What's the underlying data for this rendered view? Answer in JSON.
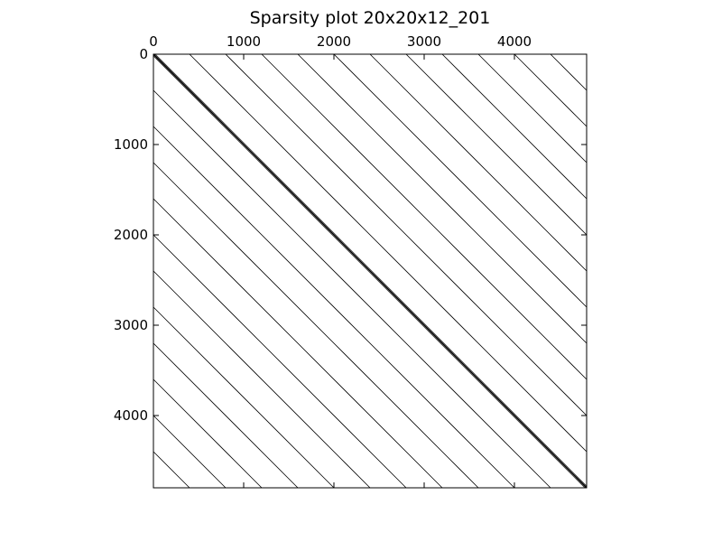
{
  "chart_data": {
    "type": "scatter",
    "title": "Sparsity plot 20x20x12_201",
    "xlabel": "",
    "ylabel": "",
    "xlim": [
      0,
      4800
    ],
    "ylim": [
      4800,
      0
    ],
    "matrix_size": 4800,
    "x_ticks": [
      0,
      1000,
      2000,
      3000,
      4000
    ],
    "y_ticks": [
      0,
      1000,
      2000,
      3000,
      4000
    ],
    "x_tick_labels": [
      "0",
      "1000",
      "2000",
      "3000",
      "4000"
    ],
    "y_tick_labels": [
      "0",
      "1000",
      "2000",
      "3000",
      "4000"
    ],
    "x_axis_position": "top",
    "grid": false,
    "diagonal_offsets": [
      -4400,
      -4000,
      -3600,
      -3200,
      -2800,
      -2400,
      -2000,
      -1600,
      -1200,
      -800,
      -400,
      0,
      400,
      800,
      1200,
      1600,
      2000,
      2400,
      2800,
      3200,
      3600,
      4000,
      4400
    ],
    "near_diagonal_offsets": [
      -20,
      -1,
      1,
      20
    ],
    "marker_color": "#000000"
  }
}
